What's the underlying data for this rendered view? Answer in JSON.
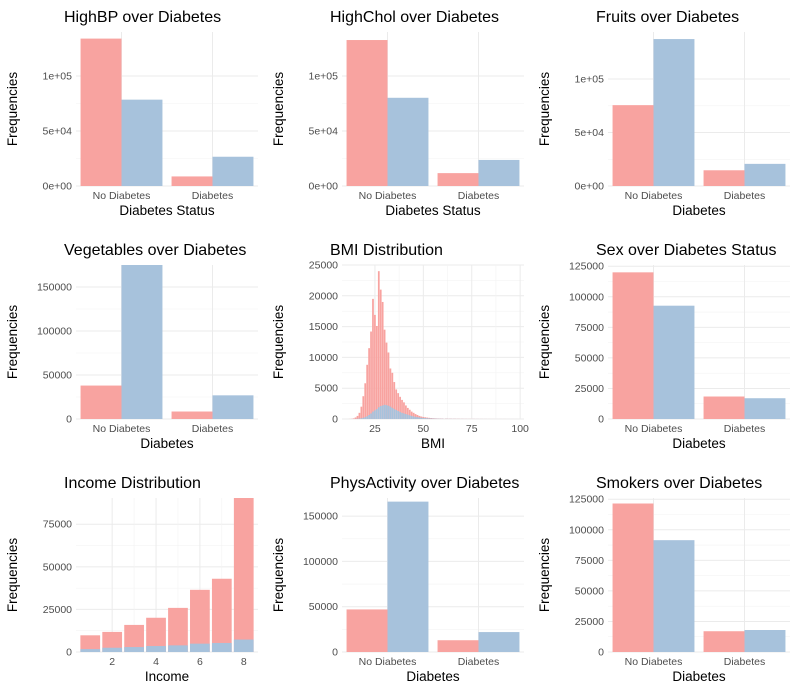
{
  "colors": {
    "pink": "#f8a3a0",
    "blue": "#a7c2dc"
  },
  "chart_data": [
    {
      "type": "bar",
      "id": "highbp",
      "title": "HighBP over Diabetes",
      "xlabel": "Diabetes Status",
      "ylabel": "Frequencies",
      "categories": [
        "No Diabetes",
        "Diabetes"
      ],
      "series": [
        {
          "values": [
            134000,
            8700
          ],
          "color": "#f8a3a0"
        },
        {
          "values": [
            78500,
            26600
          ],
          "color": "#a7c2dc"
        }
      ],
      "ylim": [
        0,
        140000
      ],
      "yticks": [
        0,
        50000,
        100000
      ],
      "ytick_labels": [
        "0e+00",
        "5e+04",
        "1e+05"
      ]
    },
    {
      "type": "bar",
      "id": "highchol",
      "title": "HighChol over Diabetes",
      "xlabel": "Diabetes Status",
      "ylabel": "Frequencies",
      "categories": [
        "No Diabetes",
        "Diabetes"
      ],
      "series": [
        {
          "values": [
            132700,
            11700
          ],
          "color": "#f8a3a0"
        },
        {
          "values": [
            80200,
            23700
          ],
          "color": "#a7c2dc"
        }
      ],
      "ylim": [
        0,
        140000
      ],
      "yticks": [
        0,
        50000,
        100000
      ],
      "ytick_labels": [
        "0e+00",
        "5e+04",
        "1e+05"
      ]
    },
    {
      "type": "bar",
      "id": "fruits",
      "title": "Fruits over Diabetes",
      "xlabel": "Diabetes",
      "ylabel": "Frequencies",
      "categories": [
        "No Diabetes",
        "Diabetes"
      ],
      "series": [
        {
          "values": [
            75600,
            14700
          ],
          "color": "#f8a3a0"
        },
        {
          "values": [
            137400,
            20700
          ],
          "color": "#a7c2dc"
        }
      ],
      "ylim": [
        0,
        144000
      ],
      "yticks": [
        0,
        50000,
        100000
      ],
      "ytick_labels": [
        "0e+00",
        "5e+04",
        "1e+05"
      ]
    },
    {
      "type": "bar",
      "id": "vegetables",
      "title": "Vegetables over Diabetes",
      "xlabel": "Diabetes",
      "ylabel": "Frequencies",
      "categories": [
        "No Diabetes",
        "Diabetes"
      ],
      "series": [
        {
          "values": [
            38000,
            8500
          ],
          "color": "#f8a3a0"
        },
        {
          "values": [
            175000,
            26900
          ],
          "color": "#a7c2dc"
        }
      ],
      "ylim": [
        0,
        175000
      ],
      "yticks": [
        0,
        50000,
        100000,
        150000
      ],
      "ytick_labels": [
        "0",
        "50000",
        "100000",
        "150000"
      ]
    },
    {
      "type": "bar",
      "id": "bmi",
      "title": "BMI Distribution",
      "xlabel": "BMI",
      "ylabel": "Frequencies",
      "mode": "histogram",
      "x": [
        12,
        13,
        14,
        15,
        16,
        17,
        18,
        19,
        20,
        21,
        22,
        23,
        24,
        25,
        26,
        27,
        28,
        29,
        30,
        31,
        32,
        33,
        34,
        35,
        36,
        37,
        38,
        39,
        40,
        41,
        42,
        43,
        44,
        45,
        46,
        47,
        48,
        49,
        50,
        51,
        52,
        53,
        54,
        55,
        56,
        57,
        58,
        59,
        60,
        62,
        64,
        66,
        68,
        70,
        72,
        74,
        76,
        78,
        80,
        82,
        84,
        86,
        88,
        90,
        92,
        94,
        96,
        98
      ],
      "series": [
        {
          "values": [
            10,
            30,
            100,
            250,
            500,
            1000,
            2000,
            3700,
            5800,
            8800,
            11500,
            14200,
            19500,
            16900,
            15100,
            24000,
            21000,
            19000,
            14500,
            12400,
            10800,
            8200,
            7500,
            6000,
            4800,
            4200,
            3600,
            3100,
            2700,
            2200,
            1800,
            1500,
            1200,
            1000,
            800,
            650,
            500,
            400,
            330,
            280,
            230,
            190,
            160,
            130,
            110,
            90,
            80,
            70,
            60,
            50,
            40,
            35,
            30,
            25,
            20,
            18,
            15,
            12,
            10,
            8,
            7,
            6,
            5,
            5,
            4,
            3,
            3,
            2
          ],
          "color": "#f8a3a0"
        },
        {
          "values": [
            2,
            5,
            10,
            20,
            40,
            70,
            120,
            200,
            300,
            450,
            650,
            900,
            1200,
            1400,
            1600,
            1900,
            2100,
            2200,
            2300,
            2250,
            2150,
            2000,
            1800,
            1600,
            1450,
            1300,
            1150,
            1000,
            900,
            800,
            700,
            600,
            500,
            420,
            350,
            300,
            250,
            200,
            170,
            140,
            120,
            100,
            85,
            70,
            60,
            50,
            45,
            40,
            35,
            30,
            25,
            20,
            18,
            15,
            12,
            10,
            9,
            8,
            7,
            6,
            5,
            4,
            4,
            3,
            3,
            2,
            2,
            1
          ],
          "color": "#a7c2dc"
        }
      ],
      "xlim": [
        8,
        102
      ],
      "xticks": [
        25,
        50,
        75,
        100
      ],
      "xtick_labels": [
        "25",
        "50",
        "75",
        "100"
      ],
      "ylim": [
        0,
        25000
      ],
      "yticks": [
        0,
        5000,
        10000,
        15000,
        20000,
        25000
      ],
      "ytick_labels": [
        "0",
        "5000",
        "10000",
        "15000",
        "20000",
        "25000"
      ]
    },
    {
      "type": "bar",
      "id": "sex",
      "title": "Sex over Diabetes Status",
      "xlabel": "Diabetes",
      "ylabel": "Frequencies",
      "categories": [
        "No Diabetes",
        "Diabetes"
      ],
      "series": [
        {
          "values": [
            120000,
            18400
          ],
          "color": "#f8a3a0"
        },
        {
          "values": [
            92700,
            17000
          ],
          "color": "#a7c2dc"
        }
      ],
      "ylim": [
        0,
        126000
      ],
      "yticks": [
        0,
        25000,
        50000,
        75000,
        100000,
        125000
      ],
      "ytick_labels": [
        "0",
        "25000",
        "50000",
        "75000",
        "100000",
        "125000"
      ]
    },
    {
      "type": "bar",
      "id": "income",
      "title": "Income Distribution",
      "xlabel": "Income",
      "ylabel": "Frequencies",
      "mode": "histogram",
      "x": [
        1,
        2,
        3,
        4,
        5,
        6,
        7,
        8
      ],
      "series": [
        {
          "values": [
            9800,
            11800,
            15900,
            20100,
            25900,
            36500,
            43000,
            90400
          ],
          "color": "#f8a3a0"
        },
        {
          "values": [
            1700,
            2500,
            2900,
            3500,
            3900,
            4900,
            5300,
            7300
          ],
          "color": "#a7c2dc"
        }
      ],
      "xlim": [
        0.35,
        8.65
      ],
      "xticks": [
        2,
        4,
        6,
        8
      ],
      "xtick_labels": [
        "2",
        "4",
        "6",
        "8"
      ],
      "ylim": [
        0,
        90400
      ],
      "yticks": [
        0,
        25000,
        50000,
        75000
      ],
      "ytick_labels": [
        "0",
        "25000",
        "50000",
        "75000"
      ]
    },
    {
      "type": "bar",
      "id": "physactivity",
      "title": "PhysActivity over Diabetes",
      "xlabel": "Diabetes",
      "ylabel": "Frequencies",
      "categories": [
        "No Diabetes",
        "Diabetes"
      ],
      "series": [
        {
          "values": [
            47000,
            13000
          ],
          "color": "#f8a3a0"
        },
        {
          "values": [
            166000,
            22000
          ],
          "color": "#a7c2dc"
        }
      ],
      "ylim": [
        0,
        170000
      ],
      "yticks": [
        0,
        50000,
        100000,
        150000
      ],
      "ytick_labels": [
        "0",
        "50000",
        "100000",
        "150000"
      ]
    },
    {
      "type": "bar",
      "id": "smokers",
      "title": "Smokers over Diabetes",
      "xlabel": "Diabetes",
      "ylabel": "Frequencies",
      "categories": [
        "No Diabetes",
        "Diabetes"
      ],
      "series": [
        {
          "values": [
            121500,
            17000
          ],
          "color": "#f8a3a0"
        },
        {
          "values": [
            91500,
            18000
          ],
          "color": "#a7c2dc"
        }
      ],
      "ylim": [
        0,
        126000
      ],
      "yticks": [
        0,
        25000,
        50000,
        75000,
        100000,
        125000
      ],
      "ytick_labels": [
        "0",
        "25000",
        "50000",
        "75000",
        "100000",
        "125000"
      ]
    }
  ]
}
